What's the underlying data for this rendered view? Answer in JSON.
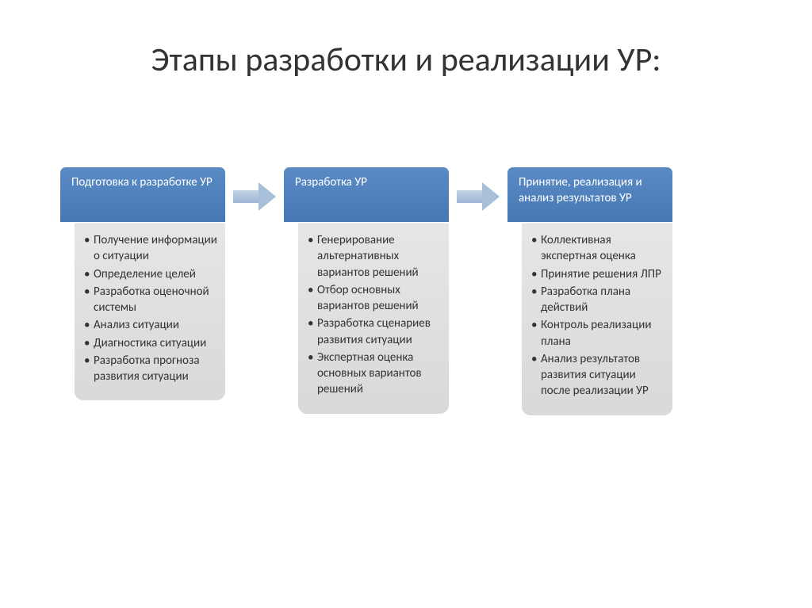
{
  "title": "Этапы разработки и реализации УР:",
  "colors": {
    "header_gradient_top": "#5a8bc5",
    "header_gradient_bottom": "#4778b5",
    "body_gradient_top": "#e6e6e6",
    "body_gradient_bottom": "#d9d9d9",
    "arrow_gradient_top": "#c4d2e5",
    "arrow_gradient_bottom": "#9db6d6",
    "title_color": "#333333",
    "item_color": "#333333",
    "header_text_color": "#ffffff",
    "background": "#ffffff"
  },
  "typography": {
    "title_fontsize": 42,
    "header_fontsize": 15,
    "item_fontsize": 15,
    "font_family": "Calibri"
  },
  "layout": {
    "type": "flowchart",
    "direction": "horizontal",
    "stage_width": 210,
    "arrow_width": 56
  },
  "stages": [
    {
      "header": "Подготовка к разработке УР",
      "items": [
        "Получение информации о ситуации",
        "Определение целей",
        "Разработка оценочной системы",
        "Анализ ситуации",
        "Диагностика ситуации",
        "Разработка прогноза развития ситуации"
      ]
    },
    {
      "header": "Разработка УР",
      "items": [
        "Генерирование альтернативных вариантов решений",
        "Отбор основных вариантов решений",
        "Разработка сценариев развития ситуации",
        "Экспертная оценка основных вариантов решений"
      ]
    },
    {
      "header": "Принятие, реализация и анализ результатов УР",
      "items": [
        "Коллективная экспертная оценка",
        "Принятие решения ЛПР",
        "Разработка плана действий",
        "Контроль реализации плана",
        "Анализ результатов развития ситуации после  реализации УР"
      ]
    }
  ]
}
